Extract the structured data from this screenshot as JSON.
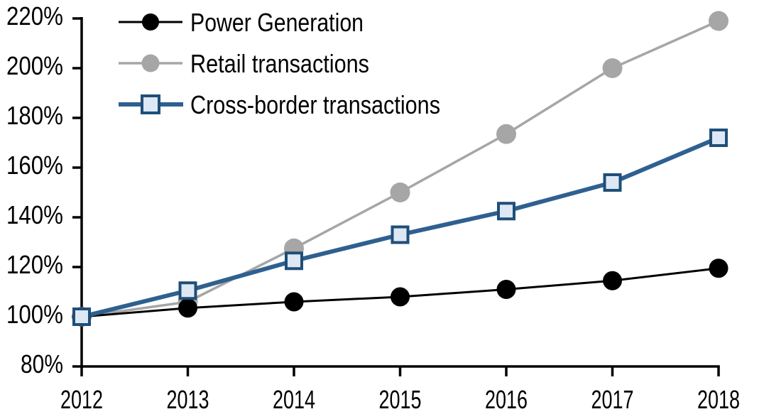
{
  "chart_data": {
    "type": "line",
    "title": "",
    "xlabel": "",
    "ylabel": "",
    "grid": false,
    "legend_position": "top-left",
    "x_categories": [
      "2012",
      "2013",
      "2014",
      "2015",
      "2016",
      "2017",
      "2018"
    ],
    "y_axis": {
      "min": 80,
      "max": 220,
      "unit": "%",
      "tick_values": [
        220,
        200,
        180,
        160,
        140,
        120,
        100,
        80
      ],
      "tick_labels": [
        "220%",
        "200%",
        "180%",
        "160%",
        "140%",
        "120%",
        "100%",
        "80%"
      ]
    },
    "series": [
      {
        "name": "Power Generation",
        "color": "#000000",
        "marker": "circle",
        "marker_fill": "#000000",
        "marker_size": 13.5,
        "line_width": 3,
        "values": [
          100,
          103.5,
          106,
          108,
          111,
          114.5,
          119.5
        ]
      },
      {
        "name": "Retail transactions",
        "color": "#A6A6A6",
        "marker": "circle",
        "marker_fill": "#A6A6A6",
        "marker_size": 14,
        "line_width": 3.5,
        "values": [
          100,
          106,
          127.5,
          150,
          173.5,
          200,
          219
        ]
      },
      {
        "name": "Cross-border transactions",
        "color": "#2E6090",
        "marker": "square",
        "marker_fill": "#DDE8F4",
        "marker_border": "#1F4E79",
        "marker_size": 13,
        "line_width": 6,
        "values": [
          100,
          110.5,
          122.5,
          133,
          142.5,
          154,
          172
        ]
      }
    ],
    "draw_order": [
      1,
      0,
      2
    ],
    "axis_color": "#000000"
  }
}
